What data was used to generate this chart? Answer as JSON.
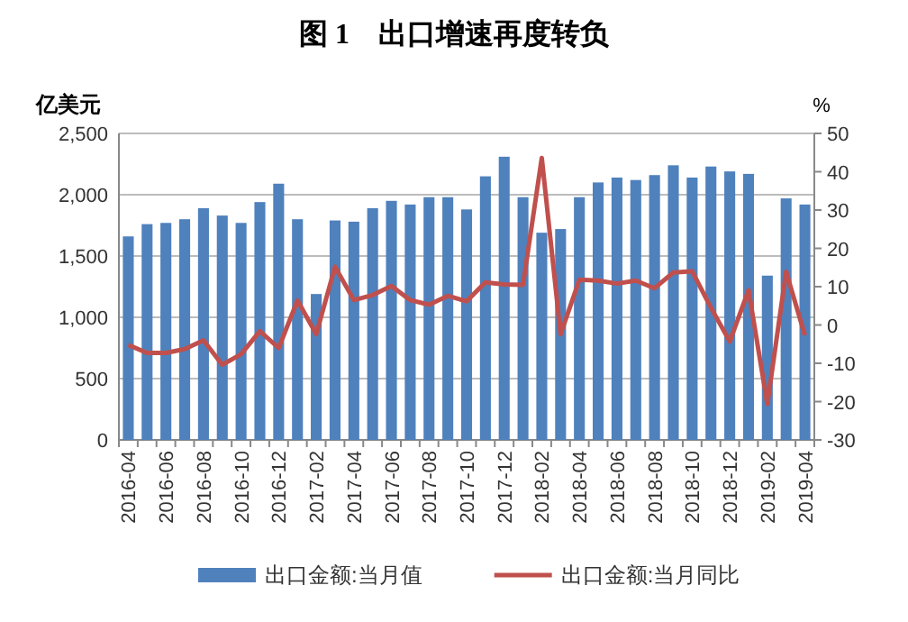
{
  "chart_data": {
    "type": "bar",
    "title": "图 1　出口增速再度转负",
    "ylabel": "亿美元",
    "y2label": "%",
    "categories": [
      "2016-04",
      null,
      "2016-06",
      null,
      "2016-08",
      null,
      "2016-10",
      null,
      "2016-12",
      null,
      "2017-02",
      null,
      "2017-04",
      null,
      "2017-06",
      null,
      "2017-08",
      null,
      "2017-10",
      null,
      "2017-12",
      null,
      "2018-02",
      null,
      "2018-04",
      null,
      "2018-06",
      null,
      "2018-08",
      null,
      "2018-10",
      null,
      "2018-12",
      null,
      "2019-02",
      null,
      "2019-04"
    ],
    "series": [
      {
        "name": "出口金额:当月值",
        "color": "#4f81bd",
        "values": [
          1660,
          1760,
          1770,
          1800,
          1890,
          1830,
          1770,
          1940,
          2090,
          1800,
          1190,
          1790,
          1780,
          1890,
          1950,
          1920,
          1980,
          1980,
          1880,
          2150,
          2310,
          1980,
          1690,
          1720,
          1980,
          2100,
          2140,
          2120,
          2160,
          2240,
          2140,
          2230,
          2190,
          2170,
          1340,
          1970,
          1920
        ]
      },
      {
        "name": "出口金额:当月同比",
        "type": "line",
        "axis": "y2",
        "color": "#c0504d",
        "values": [
          -5.2,
          -7.3,
          -7.3,
          -6.3,
          -4,
          -10.4,
          -7.6,
          -1.6,
          -6,
          6.4,
          -2.4,
          15.2,
          6.5,
          7.8,
          10.2,
          6.5,
          5.3,
          7.6,
          6.2,
          11.1,
          10.6,
          10.5,
          43.6,
          -2.4,
          11.8,
          11.6,
          10.8,
          11.6,
          9.6,
          13.7,
          14,
          4.5,
          -4.3,
          9.1,
          -20.6,
          13.9,
          -2.7
        ]
      }
    ],
    "ylim": [
      0,
      2500
    ],
    "yticks": [
      {
        "value": 0,
        "label": "0"
      },
      {
        "value": 500,
        "label": "500"
      },
      {
        "value": 1000,
        "label": "1,000"
      },
      {
        "value": 1500,
        "label": "1,500"
      },
      {
        "value": 2000,
        "label": "2,000"
      },
      {
        "value": 2500,
        "label": "2,500"
      }
    ],
    "y2lim": [
      -30,
      50
    ],
    "y2ticks": [
      -30,
      -20,
      -10,
      0,
      10,
      20,
      30,
      40,
      50
    ],
    "grid": "y",
    "legend": "bottom"
  }
}
